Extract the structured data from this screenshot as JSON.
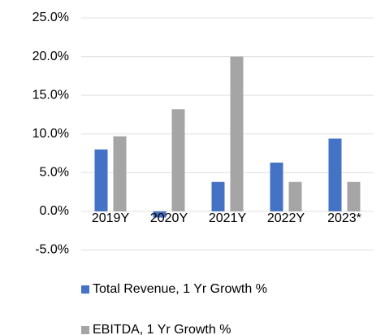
{
  "chart_data": {
    "type": "bar",
    "categories": [
      "2019Y",
      "2020Y",
      "2021Y",
      "2022Y",
      "2023*"
    ],
    "series": [
      {
        "name": "Total Revenue, 1 Yr Growth %",
        "color": "#4472c4",
        "values": [
          8.0,
          -0.8,
          3.8,
          6.3,
          9.4
        ]
      },
      {
        "name": "EBITDA, 1 Yr Growth %",
        "color": "#a5a5a5",
        "values": [
          9.7,
          13.2,
          20.0,
          3.8,
          3.8
        ]
      }
    ],
    "ylim": [
      -5,
      25
    ],
    "yticks": [
      {
        "value": -5,
        "label": "-5.0%"
      },
      {
        "value": 0,
        "label": "0.0%"
      },
      {
        "value": 5,
        "label": "5.0%"
      },
      {
        "value": 10,
        "label": "10.0%"
      },
      {
        "value": 15,
        "label": "15.0%"
      },
      {
        "value": 20,
        "label": "20.0%"
      },
      {
        "value": 25,
        "label": "25.0%"
      }
    ],
    "grid": true,
    "legend": "bottom"
  }
}
